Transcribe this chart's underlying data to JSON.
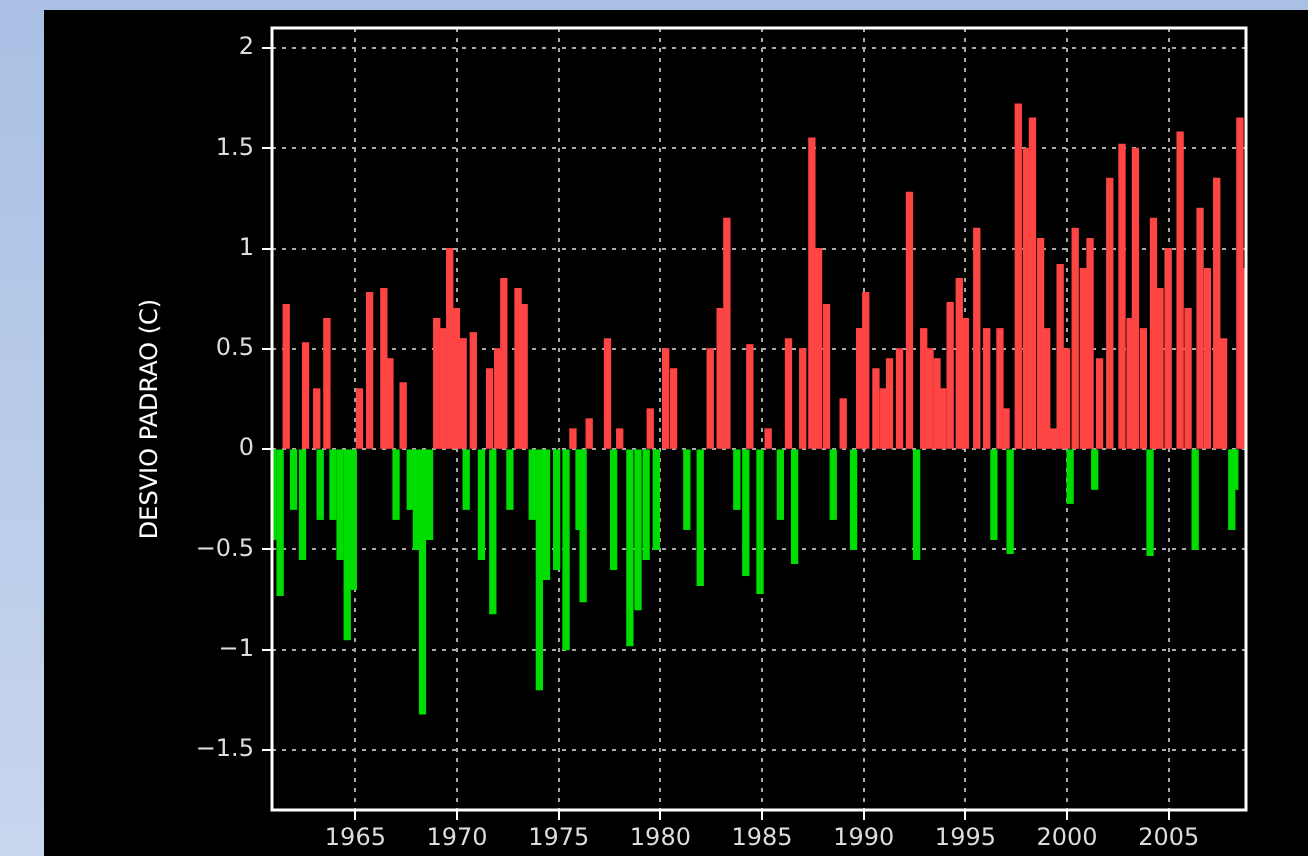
{
  "chart_data": {
    "type": "bar",
    "ylabel": "DESVIO PADRAO (C)",
    "xlim": [
      1960.9,
      2008.8
    ],
    "xticks": [
      1965,
      1970,
      1975,
      1980,
      1985,
      1990,
      1995,
      2000,
      2005
    ],
    "ylim": [
      -1.8,
      2.1
    ],
    "yticks": [
      {
        "value": -1.5,
        "label": "−1.5"
      },
      {
        "value": -1,
        "label": "−1"
      },
      {
        "value": -0.5,
        "label": "−0.5"
      },
      0,
      0.5,
      1,
      1.5,
      2
    ],
    "grid": true,
    "series": [
      {
        "color": "#ff4444",
        "x": [
          1961.6,
          1962.55,
          1963.1,
          1963.6,
          1965.2,
          1965.7,
          1966.4,
          1966.7,
          1967.35,
          1969.0,
          1969.3,
          1969.64,
          1969.97,
          1970.3,
          1970.8,
          1971.6,
          1972.0,
          1972.3,
          1973.0,
          1973.3,
          1975.7,
          1976.5,
          1977.4,
          1978.0,
          1979.5,
          1980.26,
          1980.65,
          1982.45,
          1982.94,
          1983.27,
          1984.4,
          1985.3,
          1986.3,
          1987.0,
          1987.45,
          1987.78,
          1988.17,
          1988.99,
          1989.8,
          1990.1,
          1990.6,
          1990.95,
          1991.27,
          1991.76,
          1992.25,
          1992.95,
          1993.26,
          1993.6,
          1993.9,
          1994.25,
          1994.7,
          1995.0,
          1995.56,
          1996.05,
          1996.7,
          1997.0,
          1997.6,
          1998.0,
          1998.3,
          1998.7,
          1999.0,
          1999.33,
          1999.66,
          1999.98,
          2000.4,
          2000.8,
          2001.13,
          2001.6,
          2002.1,
          2002.7,
          2003.1,
          2003.36,
          2003.75,
          2004.25,
          2004.57,
          2004.97,
          2005.56,
          2005.95,
          2006.54,
          2006.9,
          2007.36,
          2007.7,
          2008.5,
          2008.68
        ],
        "values": [
          0.72,
          0.53,
          0.3,
          0.65,
          0.3,
          0.78,
          0.8,
          0.45,
          0.33,
          0.65,
          0.6,
          1.0,
          0.7,
          0.55,
          0.58,
          0.4,
          0.5,
          0.85,
          0.8,
          0.72,
          0.1,
          0.15,
          0.55,
          0.1,
          0.2,
          0.5,
          0.4,
          0.5,
          0.7,
          1.15,
          0.52,
          0.1,
          0.55,
          0.5,
          1.55,
          1.0,
          0.72,
          0.25,
          0.6,
          0.78,
          0.4,
          0.3,
          0.45,
          0.5,
          1.28,
          0.6,
          0.5,
          0.45,
          0.3,
          0.73,
          0.85,
          0.65,
          1.1,
          0.6,
          0.6,
          0.2,
          1.72,
          1.5,
          1.65,
          1.05,
          0.6,
          0.1,
          0.92,
          0.5,
          1.1,
          0.9,
          1.05,
          0.45,
          1.35,
          1.52,
          0.65,
          1.5,
          0.6,
          1.15,
          0.8,
          1.0,
          1.58,
          0.7,
          1.2,
          0.9,
          1.35,
          0.55,
          1.65,
          0.9
        ]
      },
      {
        "color": "#00dd00",
        "x": [
          1960.95,
          1961.3,
          1961.96,
          1962.4,
          1963.27,
          1963.9,
          1964.25,
          1964.6,
          1964.9,
          1967.0,
          1967.7,
          1968.0,
          1968.3,
          1968.65,
          1970.45,
          1971.2,
          1971.76,
          1972.6,
          1973.7,
          1974.05,
          1974.4,
          1974.9,
          1975.36,
          1976.0,
          1976.2,
          1977.7,
          1978.5,
          1978.9,
          1979.3,
          1979.8,
          1981.3,
          1981.96,
          1983.76,
          1984.2,
          1984.9,
          1985.9,
          1986.6,
          1988.5,
          1989.5,
          1992.6,
          1996.4,
          1997.2,
          2000.15,
          2001.36,
          2004.08,
          2006.3,
          2008.1,
          2008.25
        ],
        "values": [
          -0.45,
          -0.73,
          -0.3,
          -0.55,
          -0.35,
          -0.35,
          -0.55,
          -0.95,
          -0.7,
          -0.35,
          -0.3,
          -0.5,
          -1.32,
          -0.45,
          -0.3,
          -0.55,
          -0.82,
          -0.3,
          -0.35,
          -1.2,
          -0.65,
          -0.6,
          -1.0,
          -0.4,
          -0.76,
          -0.6,
          -0.98,
          -0.8,
          -0.55,
          -0.5,
          -0.4,
          -0.68,
          -0.3,
          -0.63,
          -0.72,
          -0.35,
          -0.57,
          -0.35,
          -0.5,
          -0.55,
          -0.45,
          -0.52,
          -0.27,
          -0.2,
          -0.53,
          -0.5,
          -0.4,
          -0.2
        ]
      }
    ]
  }
}
